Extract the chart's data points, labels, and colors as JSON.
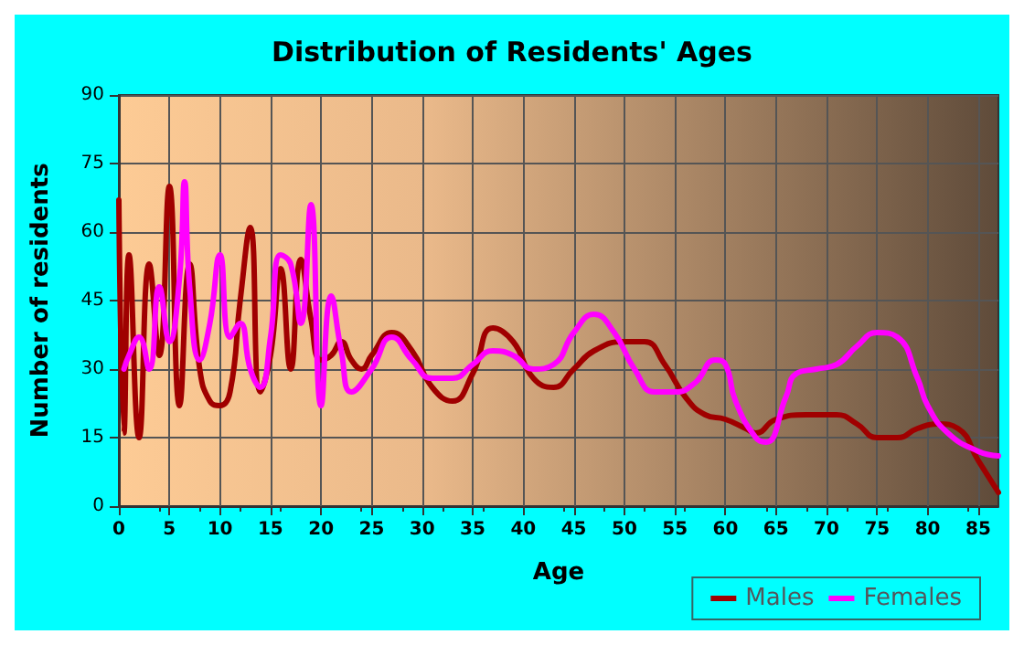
{
  "chart_data": {
    "type": "line",
    "title": "Distribution of Residents' Ages",
    "xlabel": "Age",
    "ylabel": "Number of residents",
    "xlim": [
      0,
      87
    ],
    "xticks": [
      0,
      5,
      10,
      15,
      20,
      25,
      30,
      35,
      40,
      45,
      50,
      55,
      60,
      65,
      70,
      75,
      80,
      85
    ],
    "ylim": [
      0,
      90
    ],
    "yticks": [
      0,
      15,
      30,
      45,
      60,
      75,
      90
    ],
    "grid": true,
    "legend": "bottom right",
    "marker": "none",
    "line_style": "solid",
    "series": [
      {
        "name": "Males",
        "color": "#a00000",
        "x": [
          0,
          0.5,
          1,
          2,
          3,
          4,
          5,
          6,
          7,
          8,
          9,
          10,
          11,
          12,
          13,
          14,
          15,
          16,
          17,
          18,
          19,
          20,
          21,
          22,
          23,
          24,
          25,
          27,
          29,
          31,
          33,
          35,
          37,
          39,
          41,
          43,
          45,
          47,
          50,
          52,
          54,
          56,
          58,
          60,
          62,
          63,
          65,
          68,
          71,
          73,
          75,
          77,
          79,
          81,
          83,
          85,
          87
        ],
        "values": [
          67,
          16,
          55,
          15,
          53,
          33,
          70,
          22,
          53,
          30,
          23,
          22,
          25,
          45,
          61,
          25,
          33,
          52,
          30,
          54,
          41,
          32,
          33,
          36,
          32,
          30,
          33,
          38,
          34,
          26,
          23,
          29,
          39,
          36,
          28,
          26,
          30,
          34,
          36,
          36,
          31,
          24,
          20,
          19,
          17,
          16,
          19,
          20,
          20,
          18,
          15,
          15,
          17,
          18,
          17,
          10,
          3
        ]
      },
      {
        "name": "Females",
        "color": "#ff00ff",
        "x": [
          0.5,
          1,
          2,
          3,
          4,
          5,
          6,
          6.5,
          7,
          8,
          9,
          10,
          11,
          12,
          13,
          14,
          15,
          16,
          17,
          18,
          19,
          20,
          21,
          22,
          23,
          25,
          27,
          29,
          31,
          33,
          35,
          37,
          39,
          41,
          43,
          45,
          47,
          49,
          51,
          53,
          55,
          57,
          59,
          60,
          61,
          63,
          64,
          66,
          67,
          69,
          71,
          73,
          75,
          77,
          79,
          80,
          82,
          85,
          87
        ],
        "values": [
          30,
          33,
          37,
          30,
          48,
          36,
          50,
          71,
          48,
          32,
          40,
          55,
          37,
          40,
          30,
          26,
          37,
          55,
          53,
          40,
          66,
          22,
          46,
          34,
          25,
          30,
          37,
          32,
          28,
          28,
          31,
          34,
          33,
          30,
          31,
          38,
          42,
          38,
          30,
          25,
          25,
          27,
          32,
          31,
          23,
          15,
          14,
          24,
          29,
          30,
          31,
          35,
          38,
          37,
          28,
          22,
          16,
          12,
          11
        ]
      }
    ]
  }
}
